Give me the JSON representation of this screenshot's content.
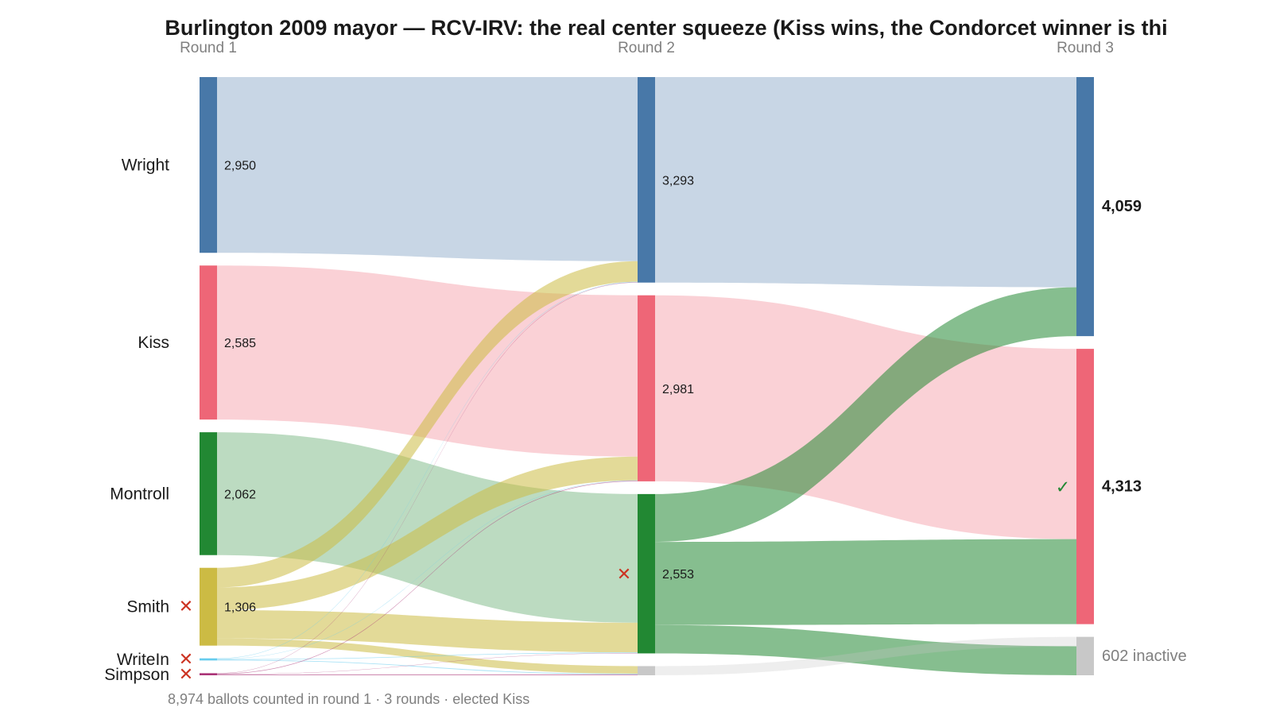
{
  "chart_data": {
    "type": "sankey",
    "title": "Burlington 2009 mayor — RCV-IRV: the real center squeeze (Kiss wins, the Condorcet winner is thi",
    "rounds": [
      "Round 1",
      "Round 2",
      "Round 3"
    ],
    "candidates": [
      {
        "key": "wright",
        "name": "Wright",
        "color": "#4878a8"
      },
      {
        "key": "kiss",
        "name": "Kiss",
        "color": "#ee6677"
      },
      {
        "key": "montroll",
        "name": "Montroll",
        "color": "#228833"
      },
      {
        "key": "smith",
        "name": "Smith",
        "color": "#ccbb44"
      },
      {
        "key": "writein",
        "name": "WriteIn",
        "color": "#66ccee"
      },
      {
        "key": "simpson",
        "name": "Simpson",
        "color": "#aa3377"
      },
      {
        "key": "inactive",
        "name": "inactive",
        "color": "#c8c8c8"
      }
    ],
    "round_totals": [
      {
        "wright": 2950,
        "kiss": 2585,
        "montroll": 2062,
        "smith": 1306,
        "writein": 36,
        "simpson": 35
      },
      {
        "wright": 3293,
        "kiss": 2981,
        "montroll": 2553,
        "inactive": 147
      },
      {
        "wright": 4059,
        "kiss": 4313,
        "inactive": 602
      }
    ],
    "value_labels": [
      {
        "wright": "2,950",
        "kiss": "2,585",
        "montroll": "2,062",
        "smith": "1,306"
      },
      {
        "wright": "3,293",
        "kiss": "2,981",
        "montroll": "2,553"
      },
      {
        "wright": "4,059",
        "kiss": "4,313",
        "inactive": "602 inactive"
      }
    ],
    "eliminated": [
      [
        "smith",
        "writein",
        "simpson"
      ],
      [
        "montroll"
      ]
    ],
    "winner": "kiss",
    "check_mark": "✓",
    "elim_mark": "✕",
    "transfers": [
      [
        {
          "from": "wright",
          "to": "wright",
          "value": 2950
        },
        {
          "from": "kiss",
          "to": "kiss",
          "value": 2585
        },
        {
          "from": "montroll",
          "to": "montroll",
          "value": 2062
        },
        {
          "from": "smith",
          "to": "wright",
          "value": 330
        },
        {
          "from": "smith",
          "to": "kiss",
          "value": 380
        },
        {
          "from": "smith",
          "to": "montroll",
          "value": 475
        },
        {
          "from": "smith",
          "to": "inactive",
          "value": 121
        },
        {
          "from": "writein",
          "to": "wright",
          "value": 7
        },
        {
          "from": "writein",
          "to": "kiss",
          "value": 6
        },
        {
          "from": "writein",
          "to": "montroll",
          "value": 11
        },
        {
          "from": "writein",
          "to": "inactive",
          "value": 12
        },
        {
          "from": "simpson",
          "to": "wright",
          "value": 6
        },
        {
          "from": "simpson",
          "to": "kiss",
          "value": 10
        },
        {
          "from": "simpson",
          "to": "montroll",
          "value": 5
        },
        {
          "from": "simpson",
          "to": "inactive",
          "value": 14
        }
      ],
      [
        {
          "from": "wright",
          "to": "wright",
          "value": 3293
        },
        {
          "from": "kiss",
          "to": "kiss",
          "value": 2981
        },
        {
          "from": "inactive",
          "to": "inactive",
          "value": 147
        },
        {
          "from": "montroll",
          "to": "wright",
          "value": 766
        },
        {
          "from": "montroll",
          "to": "kiss",
          "value": 1332
        },
        {
          "from": "montroll",
          "to": "inactive",
          "value": 455
        }
      ]
    ],
    "footnote": "8,974 ballots counted in round 1 · 3 rounds · elected Kiss"
  }
}
